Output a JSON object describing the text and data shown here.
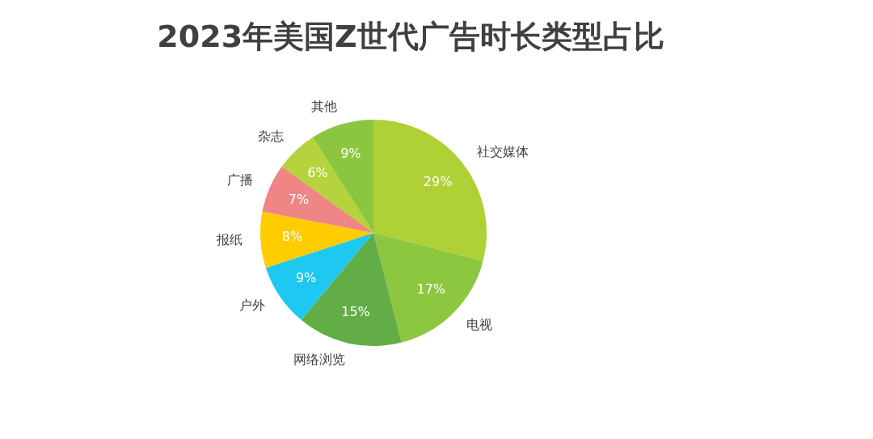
{
  "chart_data": {
    "type": "pie",
    "title": "2023年美国Z世代广告时长类型占比",
    "categories": [
      "社交媒体",
      "电视",
      "网络浏览",
      "户外",
      "报纸",
      "广播",
      "杂志",
      "其他"
    ],
    "values": [
      29,
      17,
      15,
      9,
      8,
      7,
      6,
      9
    ],
    "value_labels": [
      "29%",
      "17%",
      "15%",
      "9%",
      "8%",
      "7%",
      "6%",
      "9%"
    ],
    "colors": [
      "#b0d136",
      "#8dc63f",
      "#62ad45",
      "#1ec8f0",
      "#ffcc00",
      "#f08585",
      "#b4d33c",
      "#8cc640"
    ],
    "legend": false
  }
}
